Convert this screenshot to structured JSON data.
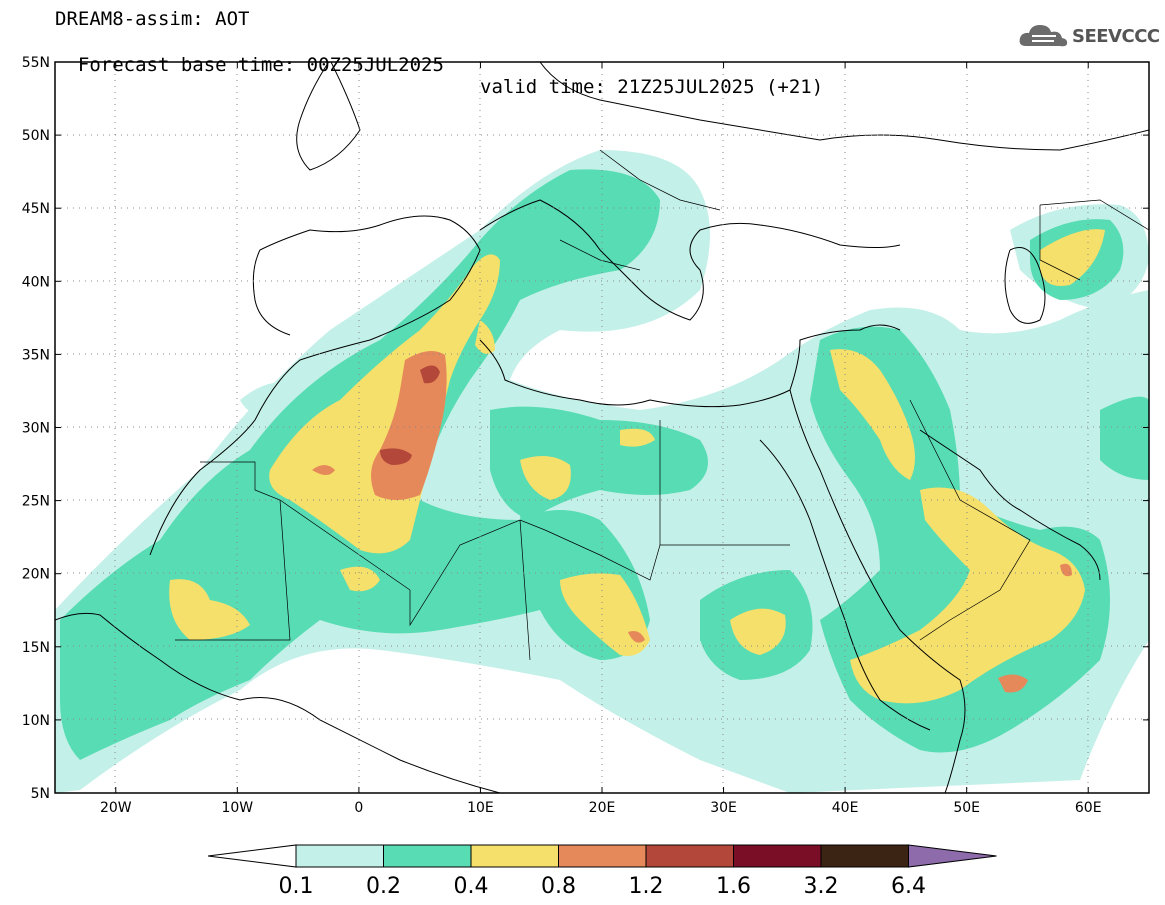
{
  "header": {
    "line1": "DREAM8-assim: AOT",
    "line2_base": "Forecast base time: 00Z25JUL2025",
    "line2_valid": "valid time: 21Z25JUL2025 (+21)"
  },
  "logo": {
    "text": "SEEVCCC",
    "icon": "cloud-icon"
  },
  "map": {
    "lat_labels": [
      "55N",
      "50N",
      "45N",
      "40N",
      "35N",
      "30N",
      "25N",
      "20N",
      "15N",
      "10N",
      "5N"
    ],
    "lon_labels": [
      "20W",
      "10W",
      "0",
      "10E",
      "20E",
      "30E",
      "40E",
      "50E",
      "60E"
    ],
    "lon_range": [
      -25,
      65
    ],
    "lat_range": [
      5,
      55
    ],
    "grid": "dotted"
  },
  "colorbar": {
    "labels": [
      "0.1",
      "0.2",
      "0.4",
      "0.8",
      "1.2",
      "1.6",
      "3.2",
      "6.4"
    ],
    "colors": [
      "#ffffff",
      "#c3f0e8",
      "#58dcb4",
      "#f5e06b",
      "#e6895a",
      "#b3483a",
      "#7a0e26",
      "#3c2415",
      "#8e6bab"
    ]
  }
}
